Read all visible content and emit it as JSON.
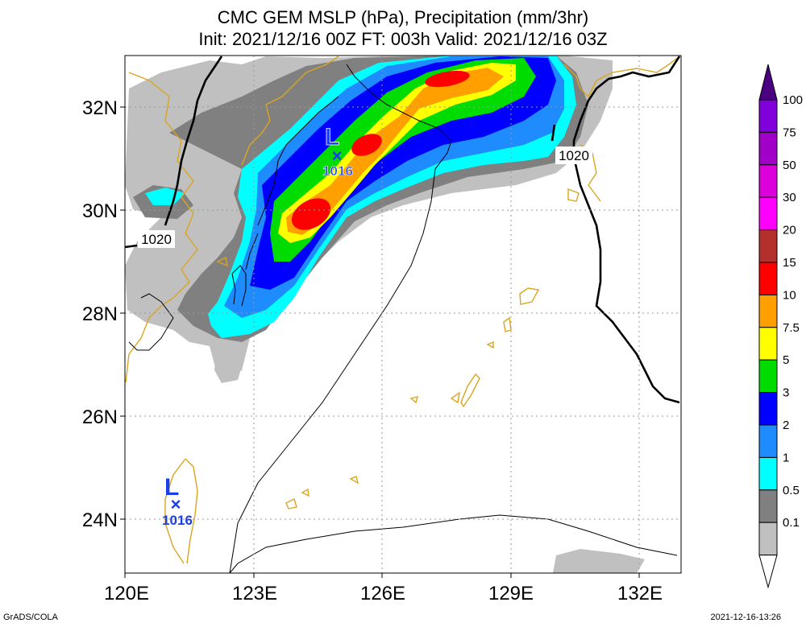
{
  "title": {
    "line1": "CMC GEM MSLP (hPa), Precipitation (mm/3hr)",
    "line2": "Init: 2021/12/16 00Z  FT: 003h  Valid: 2021/12/16 03Z"
  },
  "axes": {
    "x_ticks": [
      "120E",
      "123E",
      "126E",
      "129E",
      "132E"
    ],
    "y_ticks": [
      "32N",
      "30N",
      "28N",
      "26N",
      "24N"
    ],
    "lon_range": [
      120,
      133
    ],
    "lat_range": [
      23,
      33
    ]
  },
  "legend": {
    "labels": [
      "100",
      "75",
      "50",
      "30",
      "20",
      "15",
      "10",
      "7.5",
      "5",
      "3",
      "2",
      "1",
      "0.5",
      "0.1"
    ],
    "colors": [
      "#8200dc",
      "#a000c8",
      "#dc00dc",
      "#ff00ff",
      "#b4302c",
      "#ff0000",
      "#ffa000",
      "#ffff00",
      "#00dc00",
      "#0000ff",
      "#1e8cff",
      "#00ffff",
      "#808080",
      "#c0c0c0"
    ],
    "top_color": "#4b0082",
    "bottom_color": "#ffffff"
  },
  "isobar_labels": [
    {
      "text": "1020",
      "lon": 121.0,
      "lat": 29.3
    },
    {
      "text": "1020",
      "lon": 130.5,
      "lat": 31.0
    }
  ],
  "lows": [
    {
      "letter": "L",
      "value": "1016",
      "lon": 124.8,
      "lat": 31.1
    },
    {
      "letter": "L",
      "value": "1016",
      "lon": 121.2,
      "lat": 24.3
    }
  ],
  "credits": {
    "left": "GrADS/COLA",
    "right": "2021-12-16-13:26"
  },
  "colors": {
    "coastline": "#daa520",
    "low_marker": "#1a3ee8",
    "grid": "#999999"
  }
}
